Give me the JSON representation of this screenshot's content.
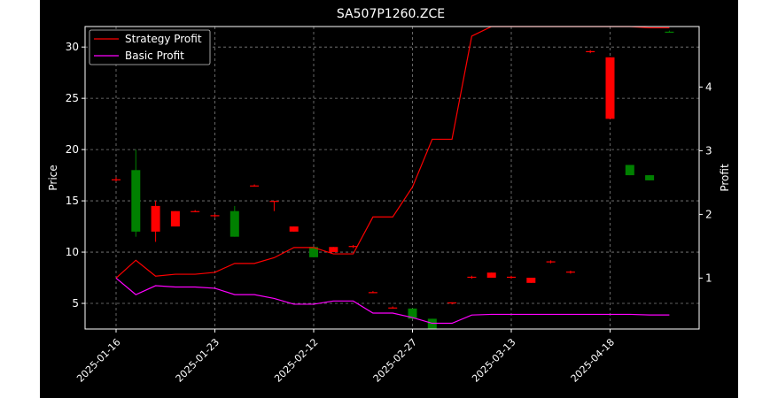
{
  "chart_data": {
    "type": "candlestick-with-lines",
    "title": "SA507P1260.ZCE",
    "left_axis": {
      "label": "Price",
      "ylim": [
        2.5,
        32
      ],
      "ticks": [
        5,
        10,
        15,
        20,
        25,
        30
      ]
    },
    "right_axis": {
      "label": "Profit",
      "ylim": [
        0.2,
        4.95
      ],
      "ticks": [
        1,
        2,
        3,
        4
      ]
    },
    "x_tick_labels": [
      "2025-01-16",
      "2025-01-23",
      "2025-02-12",
      "2025-02-27",
      "2025-03-13",
      "2025-04-18"
    ],
    "x_tick_index": [
      0,
      5,
      10,
      15,
      20,
      25
    ],
    "legend": {
      "position": "top-left",
      "entries": [
        "Strategy Profit",
        "Basic Profit"
      ]
    },
    "grid": true,
    "colors": {
      "background": "#000000",
      "figure_background": "#ffffff",
      "foreground": "#ffffff",
      "up": "#008000",
      "down": "#ff0000",
      "strategy_line": "#ff0000",
      "basic_line": "#ff00ff",
      "grid": "#808080"
    },
    "candles": [
      {
        "open": 17.1,
        "high": 17.3,
        "low": 16.9,
        "close": 17.0
      },
      {
        "open": 12.0,
        "high": 20.0,
        "low": 11.5,
        "close": 18.0
      },
      {
        "open": 14.5,
        "high": 15.0,
        "low": 11.0,
        "close": 12.0
      },
      {
        "open": 14.0,
        "high": 14.0,
        "low": 12.5,
        "close": 12.5
      },
      {
        "open": 14.0,
        "high": 14.1,
        "low": 13.9,
        "close": 13.95
      },
      {
        "open": 13.6,
        "high": 13.7,
        "low": 13.4,
        "close": 13.5
      },
      {
        "open": 11.5,
        "high": 14.5,
        "low": 11.5,
        "close": 14.0
      },
      {
        "open": 16.5,
        "high": 16.6,
        "low": 16.4,
        "close": 16.45
      },
      {
        "open": 15.0,
        "high": 15.0,
        "low": 14.0,
        "close": 14.9
      },
      {
        "open": 12.5,
        "high": 12.5,
        "low": 12.0,
        "close": 12.0
      },
      {
        "open": 9.5,
        "high": 10.5,
        "low": 9.5,
        "close": 10.5
      },
      {
        "open": 10.5,
        "high": 10.5,
        "low": 10.0,
        "close": 10.0
      },
      {
        "open": 10.6,
        "high": 10.7,
        "low": 10.4,
        "close": 10.5
      },
      {
        "open": 6.1,
        "high": 6.2,
        "low": 6.0,
        "close": 6.0
      },
      {
        "open": 4.6,
        "high": 4.7,
        "low": 4.5,
        "close": 4.5
      },
      {
        "open": 3.5,
        "high": 4.5,
        "low": 3.5,
        "close": 4.5
      },
      {
        "open": 2.5,
        "high": 3.5,
        "low": 2.5,
        "close": 3.5
      },
      {
        "open": 5.1,
        "high": 5.1,
        "low": 4.9,
        "close": 5.0
      },
      {
        "open": 7.6,
        "high": 7.7,
        "low": 7.4,
        "close": 7.5
      },
      {
        "open": 8.0,
        "high": 8.0,
        "low": 7.5,
        "close": 7.5
      },
      {
        "open": 7.6,
        "high": 7.7,
        "low": 7.4,
        "close": 7.5
      },
      {
        "open": 7.5,
        "high": 7.5,
        "low": 7.0,
        "close": 7.0
      },
      {
        "open": 9.1,
        "high": 9.2,
        "low": 8.9,
        "close": 9.0
      },
      {
        "open": 8.1,
        "high": 8.2,
        "low": 7.9,
        "close": 8.0
      },
      {
        "open": 29.6,
        "high": 29.7,
        "low": 29.4,
        "close": 29.5
      },
      {
        "open": 29.0,
        "high": 29.0,
        "low": 23.0,
        "close": 23.0
      },
      {
        "open": 17.5,
        "high": 18.5,
        "low": 17.5,
        "close": 18.5
      },
      {
        "open": 17.0,
        "high": 17.5,
        "low": 17.0,
        "close": 17.5
      },
      {
        "open": 31.5,
        "high": 31.6,
        "low": 31.4,
        "close": 31.5
      }
    ],
    "series": [
      {
        "name": "Strategy Profit",
        "axis": "right",
        "values": [
          1.0,
          1.28,
          1.03,
          1.06,
          1.06,
          1.09,
          1.23,
          1.23,
          1.32,
          1.48,
          1.48,
          1.38,
          1.38,
          1.96,
          1.96,
          2.43,
          3.18,
          3.18,
          4.8,
          4.95,
          4.95,
          4.95,
          4.95,
          4.95,
          4.95,
          4.95,
          4.95,
          4.93,
          4.93
        ]
      },
      {
        "name": "Basic Profit",
        "axis": "right",
        "values": [
          1.0,
          0.74,
          0.88,
          0.86,
          0.86,
          0.84,
          0.74,
          0.74,
          0.68,
          0.59,
          0.59,
          0.64,
          0.64,
          0.45,
          0.45,
          0.38,
          0.29,
          0.29,
          0.42,
          0.43,
          0.43,
          0.43,
          0.43,
          0.43,
          0.43,
          0.43,
          0.43,
          0.42,
          0.42
        ]
      }
    ]
  }
}
